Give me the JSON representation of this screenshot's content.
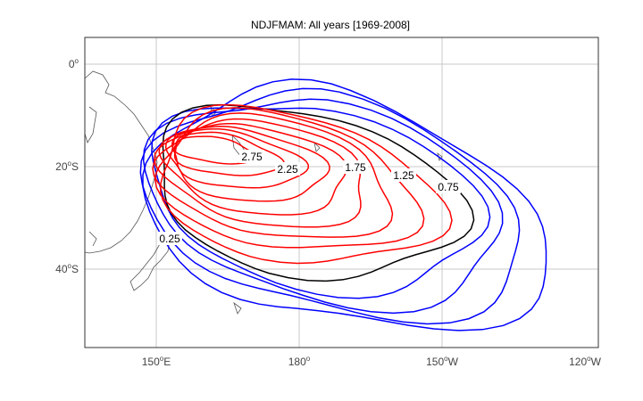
{
  "title": "NDJFMAM: All years [1969-2008]",
  "lat_labels": [
    {
      "number": "0",
      "sup": "o",
      "suffix": ""
    },
    {
      "number": "20",
      "sup": "o",
      "suffix": "S"
    },
    {
      "number": "40",
      "sup": "o",
      "suffix": "S"
    }
  ],
  "lon_labels": [
    {
      "number": "150",
      "sup": "o",
      "suffix": "E"
    },
    {
      "number": "180",
      "sup": "o",
      "suffix": ""
    },
    {
      "number": "150",
      "sup": "o",
      "suffix": "W"
    },
    {
      "number": "120",
      "sup": "o",
      "suffix": "W"
    }
  ],
  "contour_labels": [
    "2.75",
    "2.25",
    "1.75",
    "1.25",
    "0.75",
    "0.25"
  ]
}
